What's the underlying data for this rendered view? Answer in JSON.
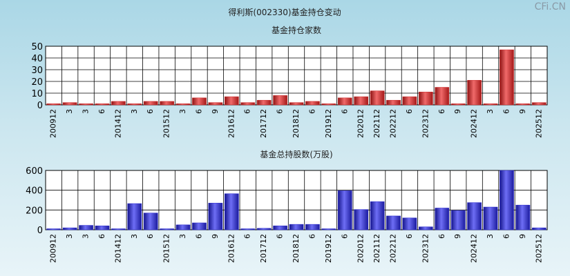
{
  "page_title": "得利斯(002330)基金持仓变动",
  "watermark": "CFi.CN",
  "chart_data": [
    {
      "type": "bar",
      "title": "基金持仓家数",
      "ylim": [
        0,
        50
      ],
      "yticks": [
        0,
        10,
        20,
        30,
        40,
        50
      ],
      "color": "#cc2b2b",
      "categories": [
        "200912",
        "3",
        "3",
        "6",
        "201412",
        "3",
        "6",
        "201512",
        "3",
        "6",
        "9",
        "201612",
        "6",
        "201712",
        "6",
        "201812",
        "6",
        "201912",
        "6",
        "202012",
        "202112",
        "202212",
        "6",
        "202312",
        "6",
        "9",
        "202412",
        "3",
        "6",
        "9",
        "202512"
      ],
      "values": [
        1,
        2,
        1,
        1,
        3,
        1,
        3,
        3,
        1,
        6,
        2,
        7,
        2,
        4,
        8,
        2,
        3,
        1,
        6,
        7,
        12,
        4,
        7,
        11,
        15,
        1,
        21,
        1,
        47,
        1,
        2
      ]
    },
    {
      "type": "bar",
      "title": "基金总持股数(万股)",
      "ylim": [
        0,
        600
      ],
      "yticks": [
        0,
        200,
        400,
        600
      ],
      "color": "#2a2ad0",
      "categories": [
        "200912",
        "3",
        "3",
        "6",
        "201412",
        "3",
        "6",
        "201512",
        "3",
        "6",
        "9",
        "201612",
        "6",
        "201712",
        "6",
        "201812",
        "6",
        "201912",
        "6",
        "202012",
        "202112",
        "202212",
        "6",
        "202312",
        "6",
        "9",
        "202412",
        "3",
        "6",
        "9",
        "202512"
      ],
      "values": [
        5,
        20,
        45,
        40,
        5,
        265,
        170,
        5,
        50,
        70,
        270,
        365,
        5,
        15,
        40,
        55,
        55,
        10,
        395,
        205,
        285,
        140,
        120,
        30,
        220,
        195,
        275,
        230,
        600,
        250,
        20
      ]
    }
  ]
}
